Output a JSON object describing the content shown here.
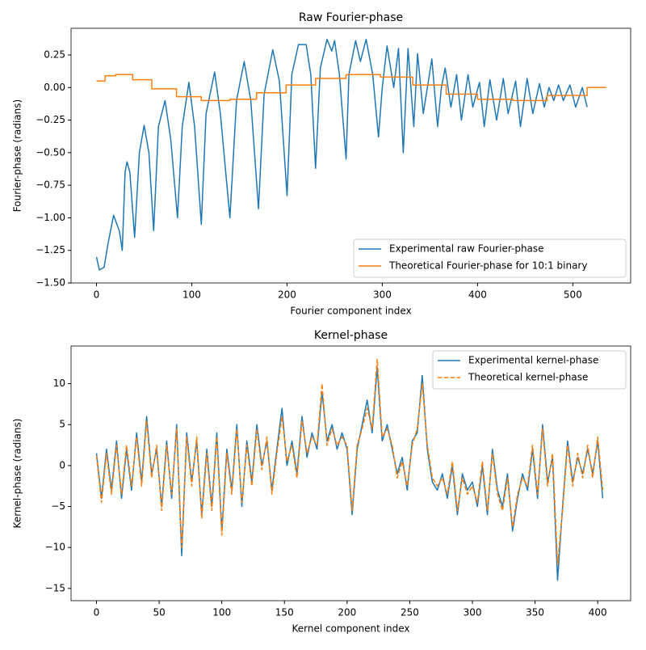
{
  "chart_data": [
    {
      "type": "line",
      "title": "Raw Fourier-phase",
      "xlabel": "Fourier component index",
      "ylabel": "Fourier-phase (radians)",
      "xlim": [
        -26.7,
        560.7
      ],
      "ylim": [
        -1.5,
        0.455
      ],
      "xticks": [
        0,
        100,
        200,
        300,
        400,
        500
      ],
      "yticks": [
        {
          "value": -1.5,
          "label": "−1.50"
        },
        {
          "value": -1.25,
          "label": "−1.25"
        },
        {
          "value": -1,
          "label": "−1.00"
        },
        {
          "value": -0.75,
          "label": "−0.75"
        },
        {
          "value": -0.5,
          "label": "−0.50"
        },
        {
          "value": -0.25,
          "label": "−0.25"
        },
        {
          "value": 0,
          "label": "0.00"
        },
        {
          "value": 0.25,
          "label": "0.25"
        }
      ],
      "legend": "lower right",
      "series": [
        {
          "name": "Experimental raw Fourier-phase",
          "color": "#1f77b4",
          "style": "solid",
          "x": [
            0,
            3,
            8,
            12,
            18,
            24,
            27,
            30,
            32,
            35,
            40,
            45,
            50,
            55,
            60,
            65,
            72,
            78,
            85,
            90,
            97,
            103,
            110,
            115,
            124,
            130,
            140,
            147,
            155,
            162,
            170,
            176,
            185,
            192,
            200,
            205,
            212,
            220,
            225,
            230,
            235,
            242,
            247,
            250,
            255,
            262,
            265,
            272,
            277,
            283,
            290,
            296,
            300,
            305,
            312,
            317,
            322,
            327,
            333,
            337,
            343,
            352,
            358,
            362,
            366,
            372,
            378,
            383,
            390,
            395,
            402,
            407,
            413,
            420,
            427,
            432,
            440,
            445,
            452,
            458,
            465,
            470,
            475,
            480,
            485,
            490,
            497,
            503,
            510,
            515
          ],
          "values": [
            -1.3,
            -1.4,
            -1.38,
            -1.2,
            -0.98,
            -1.1,
            -1.25,
            -0.65,
            -0.57,
            -0.65,
            -1.15,
            -0.5,
            -0.29,
            -0.5,
            -1.1,
            -0.3,
            -0.1,
            -0.4,
            -1.0,
            -0.3,
            0.04,
            -0.3,
            -1.05,
            -0.2,
            0.12,
            -0.2,
            -1.0,
            -0.1,
            0.2,
            -0.1,
            -0.93,
            -0.05,
            0.29,
            0.05,
            -0.83,
            0.1,
            0.33,
            0.33,
            0.1,
            -0.62,
            0.15,
            0.37,
            0.28,
            0.36,
            0.1,
            -0.55,
            0.1,
            0.36,
            0.2,
            0.37,
            0.1,
            -0.38,
            0.0,
            0.32,
            0.0,
            0.3,
            -0.5,
            0.3,
            -0.3,
            0.26,
            -0.2,
            0.22,
            -0.3,
            0.0,
            0.15,
            -0.15,
            0.1,
            -0.25,
            0.1,
            -0.15,
            0.04,
            -0.3,
            0.06,
            -0.25,
            0.07,
            -0.2,
            0.05,
            -0.3,
            0.07,
            -0.2,
            0.03,
            -0.15,
            0.0,
            -0.1,
            0.02,
            -0.1,
            0.02,
            -0.15,
            0.0,
            -0.15
          ]
        },
        {
          "name": "Theoretical Fourier-phase for 10:1 binary",
          "color": "#ff7f0e",
          "style": "solid",
          "x": [
            0,
            9,
            9,
            20,
            20,
            38,
            38,
            58,
            58,
            84,
            84,
            110,
            110,
            140,
            140,
            168,
            168,
            199,
            199,
            230,
            230,
            262,
            262,
            298,
            298,
            332,
            332,
            367,
            367,
            400,
            400,
            437,
            437,
            473,
            473,
            515,
            515,
            535
          ],
          "values": [
            0.05,
            0.05,
            0.09,
            0.09,
            0.1,
            0.1,
            0.06,
            0.06,
            -0.01,
            -0.01,
            -0.07,
            -0.07,
            -0.1,
            -0.1,
            -0.09,
            -0.09,
            -0.04,
            -0.04,
            0.02,
            0.02,
            0.07,
            0.07,
            0.1,
            0.1,
            0.08,
            0.08,
            0.02,
            0.02,
            -0.05,
            -0.05,
            -0.09,
            -0.09,
            -0.1,
            -0.1,
            -0.06,
            -0.06,
            0.0,
            0.0
          ]
        }
      ]
    },
    {
      "type": "line",
      "title": "Kernel-phase",
      "xlabel": "Kernel component index",
      "ylabel": "Kernel-phase (radians)",
      "xlim": [
        -20.3,
        426.3
      ],
      "ylim": [
        -16.5,
        14.6
      ],
      "xticks": [
        0,
        50,
        100,
        150,
        200,
        250,
        300,
        350,
        400
      ],
      "yticks": [
        {
          "value": -15,
          "label": "−15"
        },
        {
          "value": -10,
          "label": "−10"
        },
        {
          "value": -5,
          "label": "−5"
        },
        0,
        5,
        10
      ],
      "legend": "upper right",
      "series": [
        {
          "name": "Experimental kernel-phase",
          "color": "#1f77b4",
          "style": "solid",
          "x": [
            0,
            4,
            8,
            12,
            16,
            20,
            24,
            28,
            32,
            36,
            40,
            44,
            48,
            52,
            56,
            60,
            64,
            68,
            72,
            76,
            80,
            84,
            88,
            92,
            96,
            100,
            104,
            108,
            112,
            116,
            120,
            124,
            128,
            132,
            136,
            140,
            144,
            148,
            152,
            156,
            160,
            164,
            168,
            172,
            176,
            180,
            184,
            188,
            192,
            196,
            200,
            204,
            208,
            212,
            216,
            220,
            224,
            228,
            232,
            236,
            240,
            244,
            248,
            252,
            256,
            260,
            264,
            268,
            272,
            276,
            280,
            284,
            288,
            292,
            296,
            300,
            304,
            308,
            312,
            316,
            320,
            324,
            328,
            332,
            336,
            340,
            344,
            348,
            352,
            356,
            360,
            364,
            368,
            372,
            376,
            380,
            384,
            388,
            392,
            396,
            400,
            404
          ],
          "values": [
            1.5,
            -4,
            2,
            -3,
            3,
            -4,
            2,
            -3,
            4,
            -2,
            6,
            -1,
            2,
            -5,
            3,
            -4,
            5,
            -11,
            4,
            -2,
            3,
            -6,
            2,
            -5,
            4,
            -8,
            2,
            -3,
            5,
            -5,
            3,
            -2,
            5,
            0,
            3,
            -3,
            2,
            7,
            0,
            3,
            -1,
            6,
            1,
            4,
            2,
            9,
            3,
            5,
            2,
            4,
            2,
            -6,
            2,
            5,
            8,
            4,
            12,
            3,
            5,
            2,
            -1,
            1,
            -3,
            3,
            4,
            11,
            2,
            -2,
            -3,
            -1,
            -4,
            0,
            -6,
            -1,
            -3,
            -2,
            -5,
            0,
            -6,
            2,
            -3,
            -5,
            -1,
            -8,
            -4,
            -1,
            -3,
            2,
            -4,
            5,
            -2,
            1,
            -14,
            -5,
            3,
            -2,
            1,
            -1,
            2,
            -1,
            3,
            -4
          ]
        },
        {
          "name": "Theoretical kernel-phase",
          "color": "#ff7f0e",
          "style": "dashed",
          "x": [
            0,
            4,
            8,
            12,
            16,
            20,
            24,
            28,
            32,
            36,
            40,
            44,
            48,
            52,
            56,
            60,
            64,
            68,
            72,
            76,
            80,
            84,
            88,
            92,
            96,
            100,
            104,
            108,
            112,
            116,
            120,
            124,
            128,
            132,
            136,
            140,
            144,
            148,
            152,
            156,
            160,
            164,
            168,
            172,
            176,
            180,
            184,
            188,
            192,
            196,
            200,
            204,
            208,
            212,
            216,
            220,
            224,
            228,
            232,
            236,
            240,
            244,
            248,
            252,
            256,
            260,
            264,
            268,
            272,
            276,
            280,
            284,
            288,
            292,
            296,
            300,
            304,
            308,
            312,
            316,
            320,
            324,
            328,
            332,
            336,
            340,
            344,
            348,
            352,
            356,
            360,
            364,
            368,
            372,
            376,
            380,
            384,
            388,
            392,
            396,
            400,
            404
          ],
          "values": [
            1.2,
            -4.5,
            1.5,
            -3.5,
            2.5,
            -3.5,
            2.5,
            -2.5,
            3.5,
            -2.5,
            5.5,
            -1.5,
            2.5,
            -5.5,
            2.5,
            -3.5,
            4.5,
            -10,
            3.5,
            -2.5,
            3.5,
            -6.5,
            1.5,
            -5.5,
            3.5,
            -8.5,
            1.5,
            -3.5,
            4.5,
            -4.5,
            2.5,
            -2.5,
            4.5,
            -0.5,
            3.5,
            -3.5,
            1.5,
            6,
            0.5,
            2.5,
            -1.5,
            5.5,
            1.5,
            3.5,
            2.5,
            10,
            2.5,
            4.5,
            2.5,
            3.5,
            2.5,
            -5.5,
            2.5,
            4.5,
            7,
            4.5,
            13,
            3.5,
            4.5,
            2.5,
            -1.5,
            0.5,
            -2.5,
            2.5,
            4.5,
            10,
            2.5,
            -1.5,
            -2.5,
            -1.5,
            -3.5,
            0.5,
            -5.5,
            -1.5,
            -3.5,
            -2.5,
            -4.5,
            0.5,
            -5.5,
            1.5,
            -3.5,
            -5.5,
            -1.5,
            -7.5,
            -3.5,
            -1.5,
            -2.5,
            2.5,
            -3.5,
            4.5,
            -2.5,
            1.5,
            -12,
            -5.5,
            2.5,
            -2.5,
            1.5,
            -1.5,
            2.5,
            -1.5,
            3.5,
            -3
          ]
        }
      ]
    }
  ]
}
